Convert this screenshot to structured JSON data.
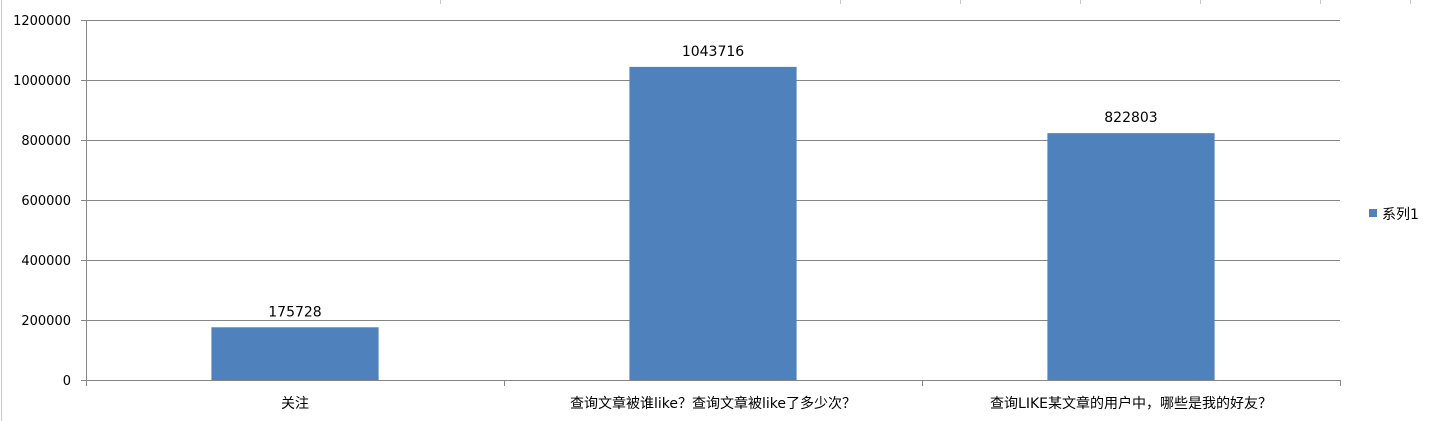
{
  "chart_data": {
    "type": "bar",
    "categories": [
      "关注",
      "查询文章被谁like？查询文章被like了多少次？",
      "查询LIKE某文章的用户中，哪些是我的好友？"
    ],
    "series": [
      {
        "name": "系列1",
        "values": [
          175728,
          1043716,
          822803
        ]
      }
    ],
    "ylim": [
      0,
      1200000
    ],
    "yticks": [
      0,
      200000,
      400000,
      600000,
      800000,
      1000000,
      1200000
    ],
    "data_labels": true,
    "grid": true,
    "legend": "right",
    "colors": {
      "series": [
        "#4F81BD"
      ],
      "gridline": "#868686",
      "axis": "#868686",
      "sheet_line": "#c8c8c8"
    }
  }
}
